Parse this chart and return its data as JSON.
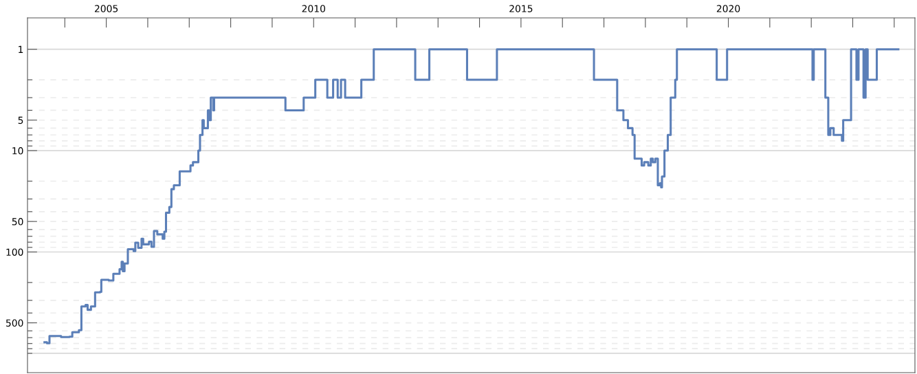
{
  "chart_data": {
    "type": "step",
    "log": "y",
    "grid": "y",
    "xlim": [
      2003.1,
      2024.5
    ],
    "xticks": [
      {
        "value": 2004,
        "label": null
      },
      2005,
      {
        "value": 2006,
        "label": null
      },
      {
        "value": 2007,
        "label": null
      },
      {
        "value": 2008,
        "label": null
      },
      {
        "value": 2009,
        "label": null
      },
      2010,
      {
        "value": 2011,
        "label": null
      },
      {
        "value": 2012,
        "label": null
      },
      {
        "value": 2013,
        "label": null
      },
      {
        "value": 2014,
        "label": null
      },
      2015,
      {
        "value": 2016,
        "label": null
      },
      {
        "value": 2017,
        "label": null
      },
      {
        "value": 2018,
        "label": null
      },
      {
        "value": 2019,
        "label": null
      },
      2020,
      {
        "value": 2021,
        "label": null
      },
      {
        "value": 2022,
        "label": null
      },
      {
        "value": 2023,
        "label": null
      },
      {
        "value": 2024,
        "label": null
      }
    ],
    "ylim": [
      1550,
      0.49
    ],
    "yticks": [
      1,
      {
        "value": 2,
        "label": null
      },
      {
        "value": 3,
        "label": null
      },
      {
        "value": 4,
        "label": null
      },
      5,
      {
        "value": 6,
        "label": null
      },
      {
        "value": 7,
        "label": null
      },
      {
        "value": 8,
        "label": null
      },
      {
        "value": 9,
        "label": null
      },
      10,
      {
        "value": 20,
        "label": null
      },
      {
        "value": 30,
        "label": null
      },
      {
        "value": 40,
        "label": null
      },
      50,
      {
        "value": 60,
        "label": null
      },
      {
        "value": 70,
        "label": null
      },
      {
        "value": 80,
        "label": null
      },
      {
        "value": 90,
        "label": null
      },
      100,
      {
        "value": 200,
        "label": null
      },
      {
        "value": 300,
        "label": null
      },
      {
        "value": 400,
        "label": null
      },
      500,
      {
        "value": 600,
        "label": null
      },
      {
        "value": 700,
        "label": null
      },
      {
        "value": 800,
        "label": null
      },
      {
        "value": 900,
        "label": null
      },
      {
        "value": 1000,
        "label": null
      }
    ],
    "series": [
      {
        "color": "#5b7fb8",
        "x": [
          2003.51,
          2003.57,
          2003.63,
          2003.91,
          2004.11,
          2004.18,
          2004.34,
          2004.4,
          2004.5,
          2004.55,
          2004.63,
          2004.73,
          2004.85,
          2004.88,
          2005.06,
          2005.17,
          2005.32,
          2005.37,
          2005.4,
          2005.44,
          2005.52,
          2005.66,
          2005.7,
          2005.77,
          2005.85,
          2005.89,
          2006.03,
          2006.09,
          2006.15,
          2006.23,
          2006.36,
          2006.4,
          2006.44,
          2006.52,
          2006.57,
          2006.63,
          2006.77,
          2007.03,
          2007.09,
          2007.22,
          2007.26,
          2007.32,
          2007.35,
          2007.45,
          2007.48,
          2007.52,
          2007.58,
          2007.6,
          2009.32,
          2009.76,
          2010.04,
          2010.33,
          2010.47,
          2010.58,
          2010.66,
          2010.76,
          2011.15,
          2011.45,
          2012.45,
          2012.79,
          2013.7,
          2014.42,
          2016.76,
          2017.32,
          2017.47,
          2017.58,
          2017.69,
          2017.74,
          2017.91,
          2017.97,
          2018.07,
          2018.13,
          2018.18,
          2018.24,
          2018.3,
          2018.35,
          2018.38,
          2018.4,
          2018.46,
          2018.54,
          2018.61,
          2018.72,
          2018.76,
          2019.72,
          2019.97,
          2022.03,
          2022.06,
          2022.34,
          2022.41,
          2022.46,
          2022.54,
          2022.74,
          2022.77,
          2022.96,
          2023.09,
          2023.14,
          2023.26,
          2023.31,
          2023.36,
          2023.58,
          2024.1
        ],
        "values": [
          778,
          795,
          675,
          690,
          685,
          620,
          590,
          345,
          333,
          372,
          345,
          250,
          247,
          188,
          191,
          164,
          148,
          125,
          155,
          130,
          94,
          98,
          81,
          91,
          74,
          84,
          79,
          89,
          62,
          67,
          74,
          63,
          41,
          36,
          24,
          22,
          16,
          14,
          13,
          10,
          7,
          5,
          6,
          4,
          5,
          3,
          4,
          3,
          4,
          3,
          2,
          3,
          2,
          3,
          2,
          3,
          2,
          1,
          2,
          1,
          2,
          1,
          2,
          4,
          5,
          6,
          7,
          12,
          14,
          13,
          14,
          12,
          13,
          12,
          22,
          21,
          23,
          18,
          10,
          7,
          3,
          2,
          1,
          2,
          1,
          2,
          1,
          3,
          7,
          6,
          7,
          8,
          5,
          1,
          2,
          1,
          3,
          1,
          2,
          1,
          1
        ]
      }
    ]
  }
}
